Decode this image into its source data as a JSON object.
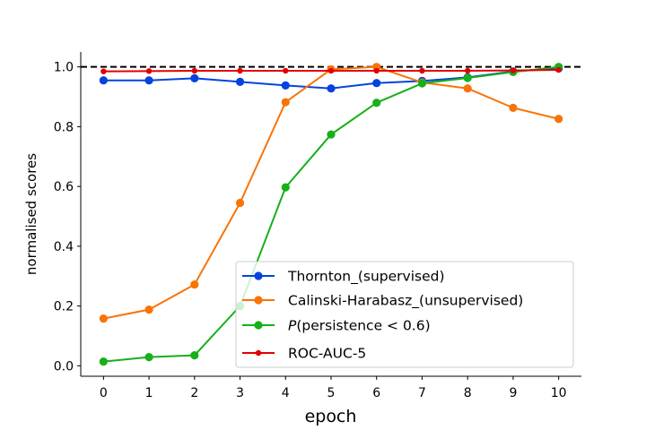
{
  "chart_data": {
    "type": "line",
    "title": "",
    "xlabel": "epoch",
    "ylabel": "normalised scores",
    "x": [
      0,
      1,
      2,
      3,
      4,
      5,
      6,
      7,
      8,
      9,
      10
    ],
    "xlim": [
      -0.5,
      10.5
    ],
    "ylim": [
      -0.035,
      1.05
    ],
    "xticks": [
      0,
      1,
      2,
      3,
      4,
      5,
      6,
      7,
      8,
      9,
      10
    ],
    "yticks": [
      0.0,
      0.2,
      0.4,
      0.6,
      0.8,
      1.0
    ],
    "ytick_labels": [
      "0.0",
      "0.2",
      "0.4",
      "0.6",
      "0.8",
      "1.0"
    ],
    "reference_line": {
      "y": 1.0,
      "style": "dashed",
      "color": "#000000"
    },
    "grid": false,
    "legend_position": "lower-right",
    "series": [
      {
        "name": "Thornton_(supervised)",
        "color": "#0343df",
        "marker_size": "large",
        "values": [
          0.955,
          0.955,
          0.962,
          0.95,
          0.938,
          0.928,
          0.946,
          0.953,
          0.965,
          0.985,
          0.995
        ]
      },
      {
        "name": "Calinski-Harabasz_(unsupervised)",
        "color": "#f97306",
        "marker_size": "large",
        "values": [
          0.158,
          0.188,
          0.272,
          0.545,
          0.882,
          0.992,
          1.0,
          0.948,
          0.928,
          0.863,
          0.826
        ]
      },
      {
        "name_prefix": "P",
        "name_rest": "(persistence < 0.6)",
        "color": "#15b01a",
        "marker_size": "large",
        "values": [
          0.014,
          0.029,
          0.035,
          0.2,
          0.597,
          0.774,
          0.88,
          0.945,
          0.963,
          0.983,
          1.0
        ]
      },
      {
        "name": "ROC-AUC-5",
        "color": "#e50000",
        "marker_size": "small",
        "values": [
          0.985,
          0.986,
          0.987,
          0.987,
          0.987,
          0.987,
          0.987,
          0.987,
          0.987,
          0.988,
          0.99
        ]
      }
    ]
  }
}
